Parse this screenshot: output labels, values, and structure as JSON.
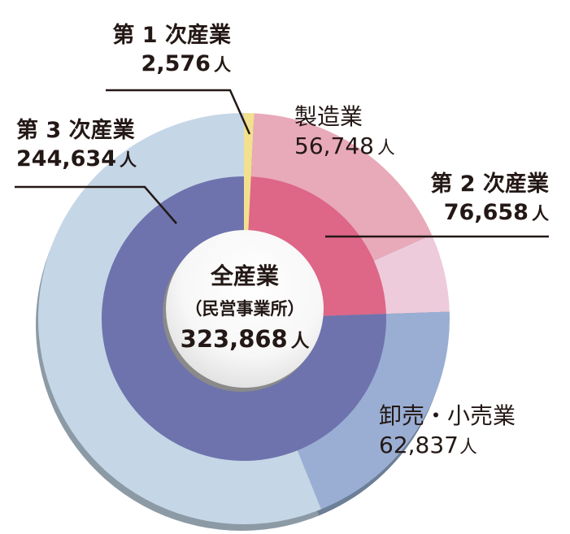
{
  "chart_data": {
    "type": "donut",
    "title": "全産業（民営事業所）",
    "total": {
      "label_line1": "全産業",
      "label_line2": "（民営事業所）",
      "value": 323868,
      "value_text": "323,868",
      "unit": "人"
    },
    "inner_ring": {
      "categories": [
        "第1次産業",
        "第2次産業",
        "第3次産業"
      ],
      "values": [
        2576,
        76658,
        244634
      ]
    },
    "outer_ring": {
      "categories": [
        "第1次産業",
        "製造業",
        "第2次産業（その他）",
        "卸売・小売業",
        "第3次産業（その他）"
      ],
      "values": [
        2576,
        56748,
        19910,
        62837,
        181797
      ]
    },
    "start_angle_deg": 0,
    "direction": "clockwise"
  },
  "colors": {
    "primary": "#f2e08e",
    "secondary_inner": "#de6687",
    "manufacturing": "#e8a9b9",
    "secondary_other": "#eecbdb",
    "tertiary_inner": "#6e73ad",
    "wholesale_retail": "#9aaed3",
    "tertiary_other": "#c5d6e6",
    "edge_light": "#8c9aa5",
    "edge_dark": "#6d7f96",
    "leader_line": "#231815"
  },
  "labels": {
    "primary": {
      "name": "第 1 次産業",
      "value": "2,576",
      "unit": "人"
    },
    "tertiary": {
      "name": "第 3 次産業",
      "value": "244,634",
      "unit": "人"
    },
    "manufacturing": {
      "name": "製造業",
      "value": "56,748",
      "unit": "人"
    },
    "secondary": {
      "name": "第 2 次産業",
      "value": "76,658",
      "unit": "人"
    },
    "wholesale": {
      "name": "卸売・小売業",
      "value": "62,837",
      "unit": "人"
    },
    "center": {
      "line1": "全産業",
      "line2": "（民営事業所）",
      "value": "323,868",
      "unit": "人"
    }
  }
}
